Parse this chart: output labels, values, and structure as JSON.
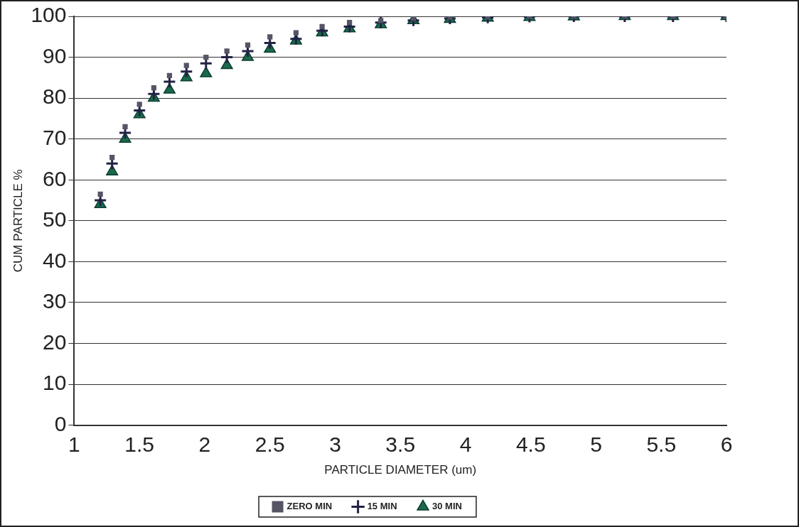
{
  "chart_data": {
    "type": "scatter",
    "xlabel": "PARTICLE DIAMETER (um)",
    "ylabel": "CUM PARTICLE %",
    "x": [
      1.2,
      1.29,
      1.39,
      1.5,
      1.61,
      1.73,
      1.86,
      2.01,
      2.17,
      2.33,
      2.5,
      2.7,
      2.9,
      3.11,
      3.35,
      3.6,
      3.88,
      4.17,
      4.49,
      4.83,
      5.22,
      5.59,
      6.0
    ],
    "series": [
      {
        "name": "ZERO MIN",
        "color": "#555566",
        "marker": "square",
        "values": [
          56.5,
          65.5,
          73,
          78.5,
          82.5,
          85.5,
          88,
          90,
          91.5,
          93,
          95,
          96,
          97.5,
          98.5,
          99,
          99.5,
          99.8,
          99.9,
          100,
          100,
          100,
          100,
          100
        ]
      },
      {
        "name": "15 MIN",
        "color": "#222244",
        "marker": "cross",
        "values": [
          55,
          64,
          71.5,
          77,
          81,
          84,
          86.5,
          88.5,
          90,
          91.5,
          93.5,
          94.5,
          96.5,
          97.5,
          98.5,
          99,
          99.5,
          99.7,
          99.9,
          100,
          100,
          100,
          100
        ]
      },
      {
        "name": "30 MIN",
        "color": "#1a6a4a",
        "marker": "triangle",
        "values": [
          54,
          62,
          70,
          76,
          80,
          82,
          85,
          86,
          88,
          90,
          92,
          94,
          96,
          97,
          98,
          99,
          99.3,
          99.6,
          99.8,
          99.9,
          100,
          100,
          100
        ]
      }
    ],
    "xlim": [
      1,
      6
    ],
    "xticks": [
      1,
      1.5,
      2,
      2.5,
      3,
      3.5,
      4,
      4.5,
      5,
      5.5,
      6
    ],
    "ylim": [
      0,
      100
    ],
    "yticks": [
      0,
      10,
      20,
      30,
      40,
      50,
      60,
      70,
      80,
      90,
      100
    ],
    "grid": "y",
    "legend": "bottom"
  }
}
